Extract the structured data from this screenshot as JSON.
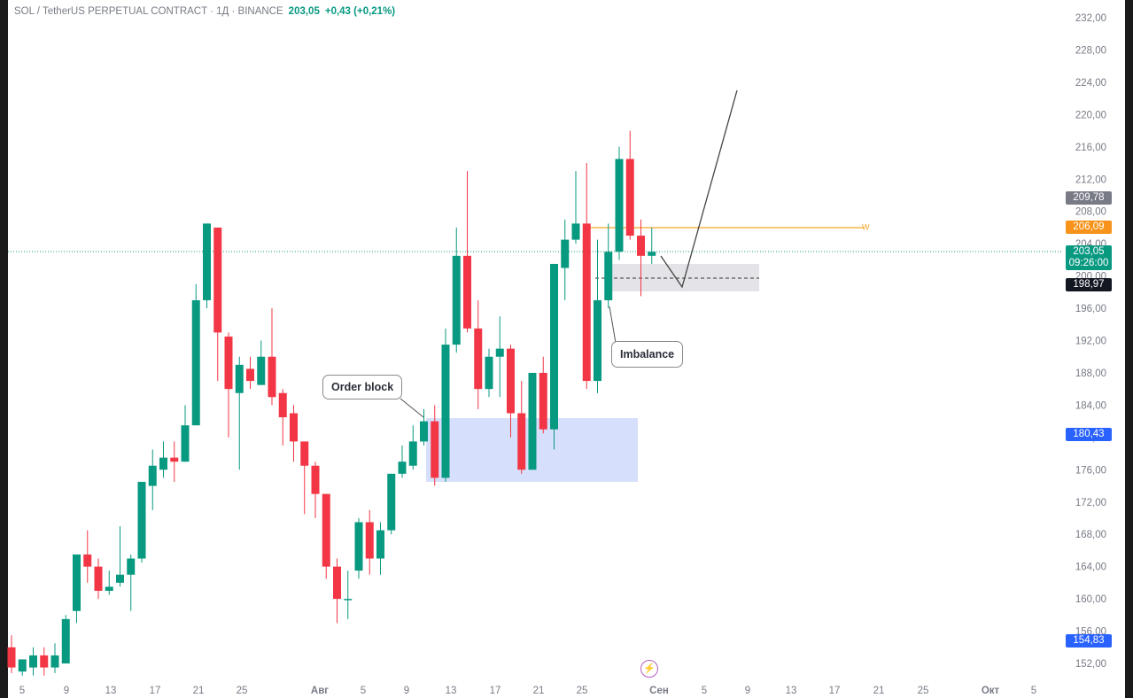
{
  "header": {
    "symbol": "SOL / TetherUS PERPETUAL CONTRACT · 1Д · BINANCE",
    "price": "203,05",
    "change": "+0,43 (+0,21%)"
  },
  "y_axis_labels": [
    "232,00",
    "228,00",
    "224,00",
    "220,00",
    "216,00",
    "212,00",
    "208,00",
    "204,00",
    "200,00",
    "196,00",
    "192,00",
    "188,00",
    "184,00",
    "180,00",
    "176,00",
    "172,00",
    "168,00",
    "164,00",
    "160,00",
    "156,00",
    "152,00"
  ],
  "x_axis_labels": [
    "5",
    "9",
    "13",
    "17",
    "21",
    "25",
    "Авг",
    "5",
    "9",
    "13",
    "17",
    "21",
    "25",
    "Сен",
    "5",
    "9",
    "13",
    "17",
    "21",
    "25",
    "Окт",
    "5"
  ],
  "price_tags": [
    {
      "id": "tag-209",
      "text": "209,78",
      "color": "#787b86"
    },
    {
      "id": "tag-206",
      "text": "206,09",
      "color": "#f7931a"
    },
    {
      "id": "tag-current",
      "text": "203,05",
      "time": "09:26:00",
      "color": "#089981"
    },
    {
      "id": "tag-198",
      "text": "198,97",
      "color": "#131722"
    },
    {
      "id": "tag-180",
      "text": "180,43",
      "color": "#2962ff"
    },
    {
      "id": "tag-154",
      "text": "154,83",
      "color": "#2962ff"
    }
  ],
  "annotations": {
    "order_block": "Order block",
    "imbalance": "Imbalance",
    "level_marker": "W"
  },
  "colors": {
    "up": "#089981",
    "down": "#f23645",
    "ob_zone": "#d6e0fc",
    "imb_zone": "#e4e4e8"
  },
  "chart_data": {
    "type": "candlestick",
    "title": "SOL / TetherUS PERPETUAL CONTRACT · 1Д · BINANCE",
    "ylim": [
      150,
      233
    ],
    "candles": [
      {
        "o": 154.0,
        "h": 155.5,
        "c": 151.5,
        "l": 150.8
      },
      {
        "o": 151.0,
        "h": 152.5,
        "c": 152.5,
        "l": 150.5
      },
      {
        "o": 151.5,
        "h": 154.0,
        "c": 153.0,
        "l": 150.5
      },
      {
        "o": 153.0,
        "h": 154.0,
        "c": 151.5,
        "l": 150.5
      },
      {
        "o": 151.5,
        "h": 154.5,
        "c": 153.0,
        "l": 150.8
      },
      {
        "o": 152.0,
        "h": 158.0,
        "c": 157.5,
        "l": 152.5
      },
      {
        "o": 158.5,
        "h": 165.5,
        "c": 165.5,
        "l": 157.0
      },
      {
        "o": 165.5,
        "h": 168.5,
        "c": 164.0,
        "l": 162.0
      },
      {
        "o": 164.0,
        "h": 165.0,
        "c": 161.0,
        "l": 160.0
      },
      {
        "o": 161.0,
        "h": 163.5,
        "c": 161.5,
        "l": 160.5
      },
      {
        "o": 162.0,
        "h": 169.0,
        "c": 163.0,
        "l": 161.5
      },
      {
        "o": 163.0,
        "h": 165.5,
        "c": 165.0,
        "l": 158.5
      },
      {
        "o": 165.0,
        "h": 174.0,
        "c": 174.5,
        "l": 164.5
      },
      {
        "o": 174.0,
        "h": 178.5,
        "c": 176.5,
        "l": 171.0
      },
      {
        "o": 176.0,
        "h": 179.5,
        "c": 177.5,
        "l": 175.0
      },
      {
        "o": 177.5,
        "h": 179.5,
        "c": 177.0,
        "l": 174.5
      },
      {
        "o": 177.0,
        "h": 184.0,
        "c": 181.5,
        "l": 177.0
      },
      {
        "o": 181.5,
        "h": 199.0,
        "c": 197.0,
        "l": 181.5
      },
      {
        "o": 197.0,
        "h": 206.5,
        "c": 206.5,
        "l": 196.0
      },
      {
        "o": 206.0,
        "h": 206.0,
        "c": 193.0,
        "l": 187.0
      },
      {
        "o": 192.5,
        "h": 193.0,
        "c": 186.0,
        "l": 180.0
      },
      {
        "o": 185.5,
        "h": 190.0,
        "c": 189.0,
        "l": 176.0
      },
      {
        "o": 188.5,
        "h": 190.0,
        "c": 187.0,
        "l": 186.0
      },
      {
        "o": 186.5,
        "h": 192.0,
        "c": 190.0,
        "l": 186.5
      },
      {
        "o": 190.0,
        "h": 196.0,
        "c": 185.0,
        "l": 184.0
      },
      {
        "o": 185.5,
        "h": 186.0,
        "c": 182.5,
        "l": 179.0
      },
      {
        "o": 183.0,
        "h": 184.0,
        "c": 179.5,
        "l": 177.0
      },
      {
        "o": 179.5,
        "h": 179.5,
        "c": 176.5,
        "l": 170.5
      },
      {
        "o": 176.5,
        "h": 177.0,
        "c": 173.0,
        "l": 170.0
      },
      {
        "o": 173.0,
        "h": 173.0,
        "c": 164.0,
        "l": 162.5
      },
      {
        "o": 164.0,
        "h": 165.0,
        "c": 160.0,
        "l": 157.0
      },
      {
        "o": 160.0,
        "h": 163.5,
        "c": 160.0,
        "l": 157.5
      },
      {
        "o": 163.5,
        "h": 170.0,
        "c": 169.5,
        "l": 162.5
      },
      {
        "o": 169.5,
        "h": 171.0,
        "c": 165.0,
        "l": 163.0
      },
      {
        "o": 165.0,
        "h": 169.5,
        "c": 168.5,
        "l": 163.0
      },
      {
        "o": 168.5,
        "h": 175.5,
        "c": 175.5,
        "l": 168.0
      },
      {
        "o": 175.5,
        "h": 179.0,
        "c": 177.0,
        "l": 175.0
      },
      {
        "o": 176.5,
        "h": 181.5,
        "c": 179.5,
        "l": 176.0
      },
      {
        "o": 179.5,
        "h": 183.5,
        "c": 182.0,
        "l": 179.0
      },
      {
        "o": 182.0,
        "h": 184.0,
        "c": 175.0,
        "l": 174.0
      },
      {
        "o": 175.0,
        "h": 193.5,
        "c": 191.5,
        "l": 174.5
      },
      {
        "o": 191.5,
        "h": 206.0,
        "c": 202.5,
        "l": 190.5
      },
      {
        "o": 202.5,
        "h": 213.0,
        "c": 193.5,
        "l": 193.0
      },
      {
        "o": 193.5,
        "h": 197.0,
        "c": 186.0,
        "l": 183.5
      },
      {
        "o": 186.0,
        "h": 191.0,
        "c": 190.0,
        "l": 185.0
      },
      {
        "o": 190.0,
        "h": 195.0,
        "c": 191.0,
        "l": 185.0
      },
      {
        "o": 191.0,
        "h": 191.5,
        "c": 183.0,
        "l": 180.0
      },
      {
        "o": 183.0,
        "h": 187.0,
        "c": 176.0,
        "l": 175.5
      },
      {
        "o": 176.0,
        "h": 188.0,
        "c": 188.0,
        "l": 176.0
      },
      {
        "o": 188.0,
        "h": 190.0,
        "c": 181.0,
        "l": 180.5
      },
      {
        "o": 181.0,
        "h": 201.0,
        "c": 201.5,
        "l": 178.5
      },
      {
        "o": 201.0,
        "h": 207.0,
        "c": 204.5,
        "l": 197.0
      },
      {
        "o": 204.5,
        "h": 213.0,
        "c": 206.5,
        "l": 204.0
      },
      {
        "o": 206.5,
        "h": 214.0,
        "c": 187.0,
        "l": 186.0
      },
      {
        "o": 187.0,
        "h": 204.5,
        "c": 197.0,
        "l": 185.5
      },
      {
        "o": 197.0,
        "h": 206.5,
        "c": 203.0,
        "l": 196.0
      },
      {
        "o": 203.0,
        "h": 216.0,
        "c": 214.5,
        "l": 202.0
      },
      {
        "o": 214.5,
        "h": 218.0,
        "c": 205.0,
        "l": 204.5
      },
      {
        "o": 205.0,
        "h": 207.0,
        "c": 202.5,
        "l": 197.5
      },
      {
        "o": 202.5,
        "h": 206.0,
        "c": 203.0,
        "l": 201.5
      }
    ]
  }
}
